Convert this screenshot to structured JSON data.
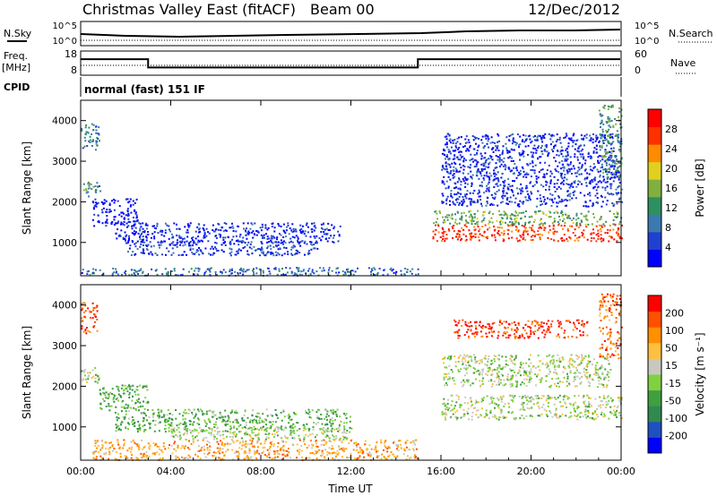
{
  "header": {
    "title": "Christmas Valley East (fitACF)",
    "beam": "Beam 00",
    "date": "12/Dec/2012"
  },
  "top_panels": {
    "nsky_label": "N.Sky",
    "nsky_ticks": [
      "10^5",
      "10^0"
    ],
    "nsearch_label": "N.Search",
    "nsearch_ticks": [
      "10^5",
      "10^0"
    ],
    "freq_label_1": "Freq.",
    "freq_label_2": "[MHz]",
    "freq_ticks": [
      "18",
      "8"
    ],
    "nave_label": "Nave",
    "nave_ticks": [
      "60",
      "0"
    ],
    "cpid_label": "CPID",
    "cpid_text": "normal (fast) 151 IF",
    "freq_steps": [
      {
        "t_start": 0,
        "t_end": 3,
        "mhz": 14.6
      },
      {
        "t_start": 3,
        "t_end": 15,
        "mhz": 11.2
      },
      {
        "t_start": 15,
        "t_end": 24,
        "mhz": 14.6
      }
    ]
  },
  "chart_data": [
    {
      "type": "heatmap",
      "name": "power",
      "ylabel": "Slant Range [km]",
      "xlabel": "",
      "x_ticks": [
        "00:00",
        "04:00",
        "08:00",
        "12:00",
        "16:00",
        "20:00",
        "00:00"
      ],
      "y_ticks": [
        "1000",
        "2000",
        "3000",
        "4000"
      ],
      "xlim": [
        0,
        24
      ],
      "ylim": [
        180,
        4500
      ],
      "colorbar_label": "Power [dB]",
      "colorbar_ticks": [
        "28",
        "24",
        "20",
        "16",
        "12",
        "8",
        "4"
      ],
      "colorbar_colors": [
        "#0000ff",
        "#2040d0",
        "#3a7ab0",
        "#2e9060",
        "#80b040",
        "#e0d020",
        "#ff8c00",
        "#ff3000",
        "#ff0000"
      ],
      "regions": [
        {
          "t0": 0.0,
          "t1": 0.8,
          "r0": 3300,
          "r1": 4000,
          "level": 0.3
        },
        {
          "t0": 0.0,
          "t1": 0.9,
          "r0": 2150,
          "r1": 2500,
          "level": 0.35
        },
        {
          "t0": 0.5,
          "t1": 2.5,
          "r0": 1400,
          "r1": 2100,
          "level": 0.05
        },
        {
          "t0": 1.5,
          "t1": 11.5,
          "r0": 1000,
          "r1": 1500,
          "level": 0.1
        },
        {
          "t0": 2.0,
          "t1": 10.5,
          "r0": 700,
          "r1": 1050,
          "level": 0.15
        },
        {
          "t0": 0.0,
          "t1": 15.0,
          "r0": 200,
          "r1": 400,
          "level": 0.25
        },
        {
          "t0": 16.0,
          "t1": 24.0,
          "r0": 1900,
          "r1": 3700,
          "level": 0.12
        },
        {
          "t0": 15.6,
          "t1": 24.0,
          "r0": 1450,
          "r1": 1800,
          "level": 0.45
        },
        {
          "t0": 15.6,
          "t1": 24.0,
          "r0": 1050,
          "r1": 1450,
          "level": 0.85
        },
        {
          "t0": 23.0,
          "t1": 24.0,
          "r0": 2600,
          "r1": 4400,
          "level": 0.4
        }
      ]
    },
    {
      "type": "heatmap",
      "name": "velocity",
      "ylabel": "Slant Range [km]",
      "xlabel": "Time UT",
      "x_ticks": [
        "00:00",
        "04:00",
        "08:00",
        "12:00",
        "16:00",
        "20:00",
        "00:00"
      ],
      "y_ticks": [
        "1000",
        "2000",
        "3000",
        "4000"
      ],
      "xlim": [
        0,
        24
      ],
      "ylim": [
        180,
        4500
      ],
      "colorbar_label": "Velocity [m s⁻¹]",
      "colorbar_ticks": [
        "200",
        "100",
        "50",
        "15",
        "-15",
        "-50",
        "-100",
        "-200"
      ],
      "colorbar_colors": [
        "#0000ff",
        "#2050c0",
        "#308a50",
        "#40a040",
        "#80d040",
        "#c8c8c0",
        "#ffc040",
        "#ff9000",
        "#ff5000",
        "#ff0000"
      ],
      "regions": [
        {
          "t0": 0.0,
          "t1": 0.7,
          "r0": 3300,
          "r1": 4100,
          "level": 0.85
        },
        {
          "t0": 0.0,
          "t1": 0.9,
          "r0": 2100,
          "r1": 2500,
          "level": 0.5
        },
        {
          "t0": 0.8,
          "t1": 3.0,
          "r0": 1400,
          "r1": 2050,
          "level": 0.35
        },
        {
          "t0": 1.5,
          "t1": 12.0,
          "r0": 900,
          "r1": 1450,
          "level": 0.38
        },
        {
          "t0": 4.0,
          "t1": 12.0,
          "r0": 700,
          "r1": 1000,
          "level": 0.5
        },
        {
          "t0": 0.5,
          "t1": 15.0,
          "r0": 200,
          "r1": 700,
          "level": 0.7
        },
        {
          "t0": 16.0,
          "t1": 24.0,
          "r0": 1200,
          "r1": 1800,
          "level": 0.5
        },
        {
          "t0": 16.0,
          "t1": 23.5,
          "r0": 2000,
          "r1": 2800,
          "level": 0.5
        },
        {
          "t0": 16.5,
          "t1": 22.5,
          "r0": 3200,
          "r1": 3650,
          "level": 0.9
        },
        {
          "t0": 23.0,
          "t1": 24.0,
          "r0": 2700,
          "r1": 4300,
          "level": 0.8
        }
      ]
    }
  ]
}
